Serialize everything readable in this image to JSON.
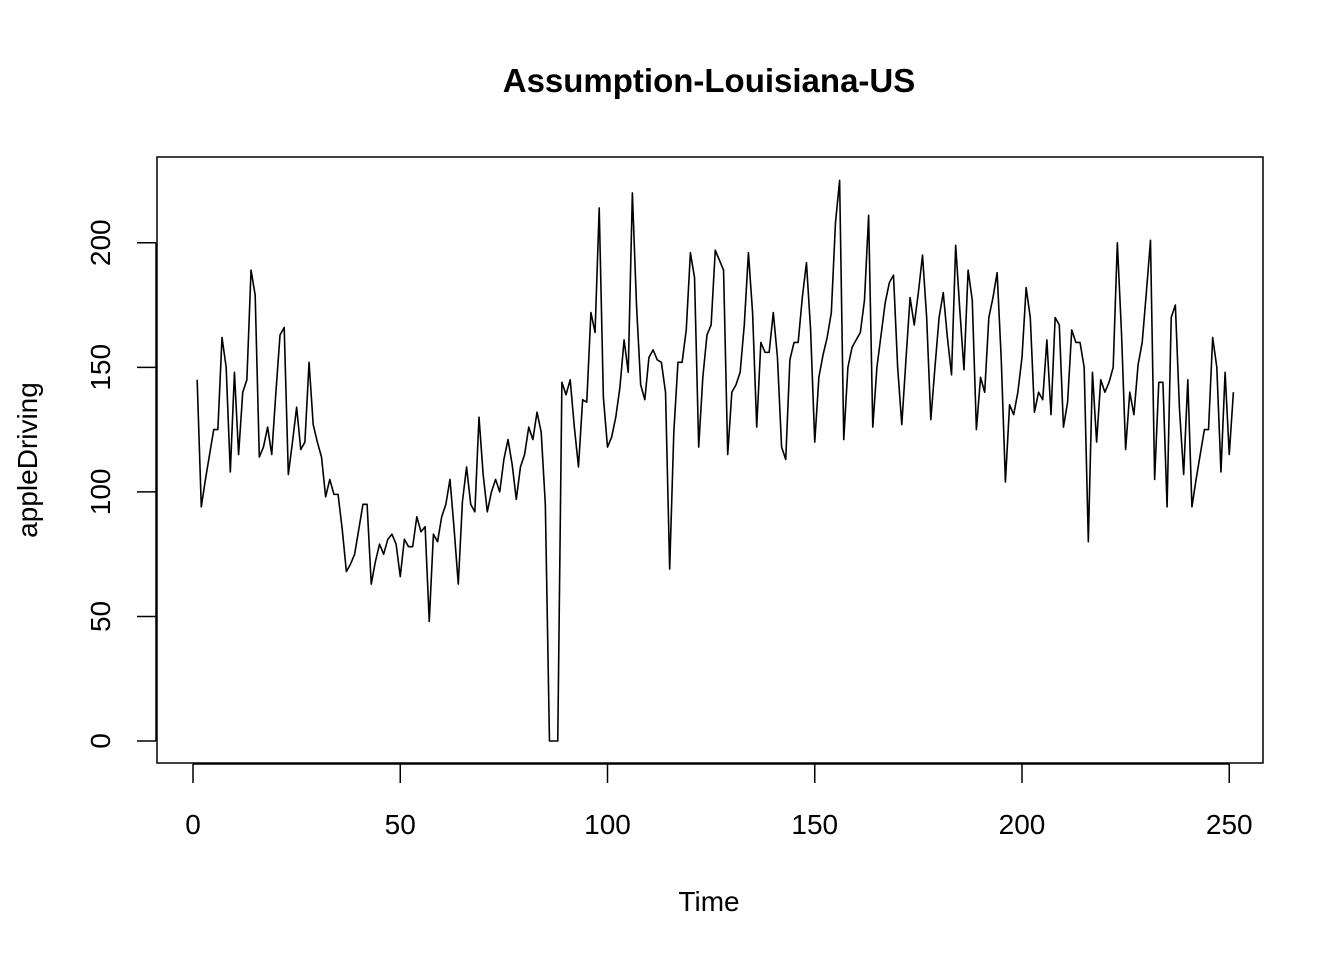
{
  "chart_data": {
    "type": "line",
    "title": "Assumption-Louisiana-US",
    "xlabel": "Time",
    "ylabel": "appleDriving",
    "xlim": [
      1,
      248
    ],
    "ylim": [
      0,
      225
    ],
    "x_ticks": [
      0,
      50,
      100,
      150,
      200,
      250
    ],
    "y_ticks": [
      0,
      50,
      100,
      150,
      200
    ],
    "grid": false,
    "series": [
      {
        "color": "#000000",
        "values": [
          145,
          94,
          105,
          115,
          125,
          125,
          162,
          150,
          108,
          148,
          115,
          140,
          145,
          189,
          179,
          114,
          118,
          126,
          115,
          140,
          163,
          166,
          107,
          120,
          134,
          117,
          120,
          152,
          127,
          120,
          114,
          98,
          105,
          99,
          99,
          85,
          68,
          71,
          75,
          85,
          95,
          95,
          63,
          72,
          79,
          75,
          81,
          83,
          79,
          66,
          81,
          78,
          78,
          90,
          84,
          86,
          48,
          83,
          80,
          90,
          95,
          105,
          85,
          63,
          96,
          110,
          95,
          92,
          130,
          107,
          92,
          100,
          105,
          100,
          113,
          121,
          111,
          97,
          110,
          115,
          126,
          121,
          132,
          124,
          95,
          0,
          0,
          0,
          144,
          139,
          145,
          126,
          110,
          137,
          136,
          172,
          164,
          214,
          138,
          118,
          122,
          130,
          142,
          161,
          148,
          220,
          175,
          143,
          137,
          154,
          157,
          153,
          152,
          140,
          69,
          124,
          152,
          152,
          165,
          196,
          186,
          118,
          146,
          163,
          167,
          197,
          193,
          189,
          115,
          140,
          143,
          148,
          167,
          196,
          172,
          126,
          160,
          156,
          156,
          172,
          154,
          118,
          113,
          153,
          160,
          160,
          178,
          192,
          165,
          120,
          146,
          155,
          162,
          172,
          208,
          225,
          121,
          150,
          158,
          161,
          164,
          177,
          211,
          126,
          150,
          163,
          176,
          184,
          187,
          150,
          127,
          153,
          178,
          167,
          180,
          195,
          170,
          129,
          150,
          170,
          180,
          162,
          147,
          199,
          173,
          149,
          189,
          177,
          125,
          146,
          140,
          170,
          178,
          188,
          153,
          104,
          135,
          131,
          140,
          154,
          182,
          170,
          132,
          140,
          137,
          161,
          131,
          170,
          167,
          126,
          136,
          165,
          160,
          160,
          150,
          80,
          148,
          120,
          145,
          140,
          144,
          150,
          200,
          164,
          117,
          140,
          131,
          151,
          160,
          180,
          201,
          105,
          144,
          144,
          94,
          170,
          175,
          133,
          107,
          145,
          94,
          105,
          115,
          125,
          125,
          162,
          150,
          108,
          148,
          115,
          140
        ]
      }
    ]
  }
}
